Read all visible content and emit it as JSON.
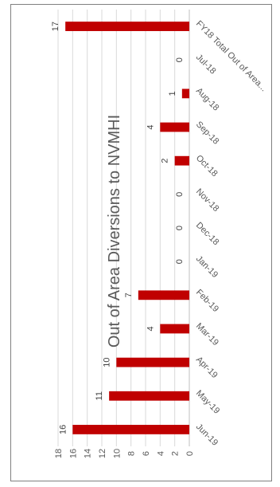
{
  "chart_data": {
    "type": "bar",
    "orientation": "rotated-90-clockwise",
    "title": "Out of Area Diversions to NVMHI",
    "categories": [
      "FY18 Total Out of Area...",
      "Jul-18",
      "Aug-18",
      "Sep-18",
      "Oct-18",
      "Nov-18",
      "Dec-18",
      "Jan-19",
      "Feb-19",
      "Mar-19",
      "Apr-19",
      "May-19",
      "Jun-19"
    ],
    "values": [
      17,
      0,
      1,
      4,
      2,
      0,
      0,
      0,
      7,
      4,
      10,
      11,
      16
    ],
    "ylim": [
      0,
      18
    ],
    "yticks": [
      0,
      2,
      4,
      6,
      8,
      10,
      12,
      14,
      16,
      18
    ],
    "grid": true,
    "legend": "none",
    "bar_color": "#c00000"
  }
}
